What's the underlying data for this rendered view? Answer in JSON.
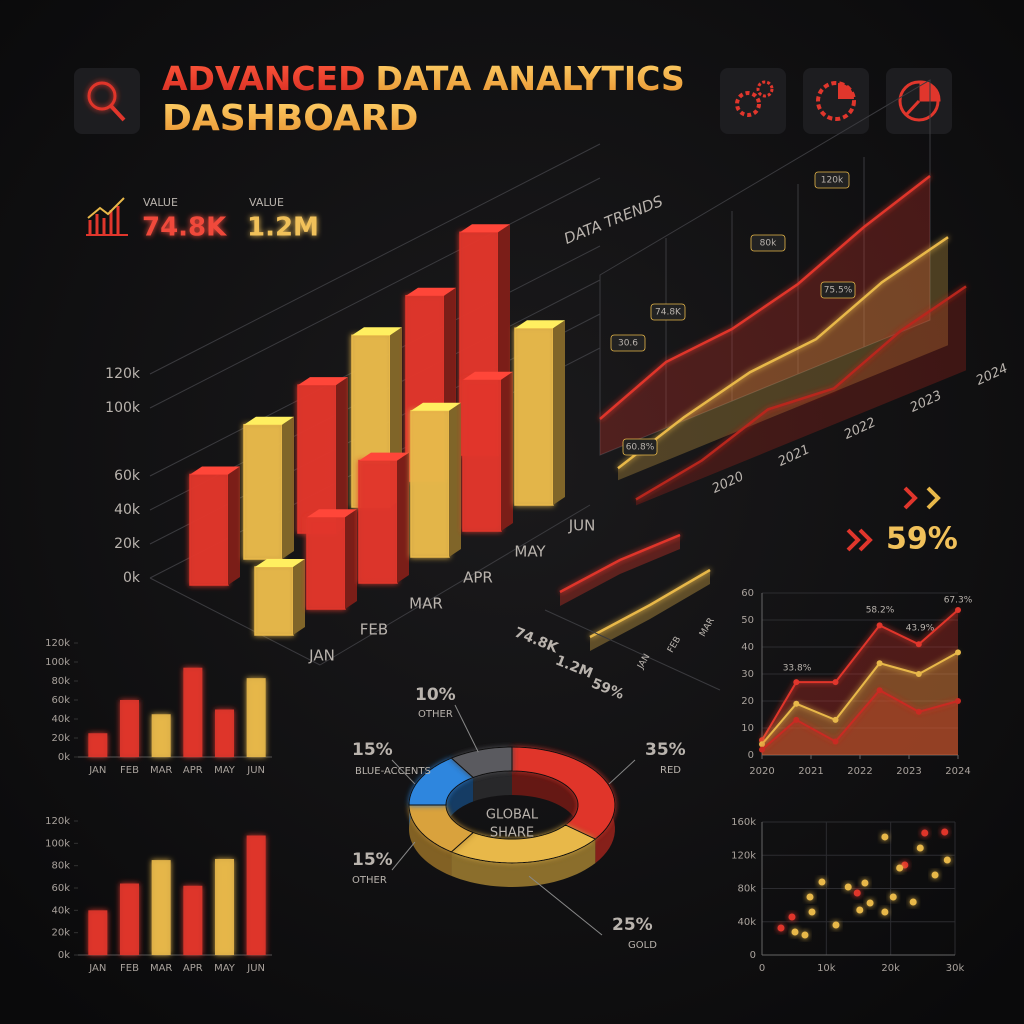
{
  "header": {
    "title": [
      "ADVANCED",
      "DATA ANALYTICS",
      "DASHBOARD"
    ]
  },
  "kpis": [
    {
      "label": "VALUE",
      "value": "74.8K"
    },
    {
      "label": "VALUE",
      "value": "1.2M"
    },
    {
      "value": "59%"
    }
  ],
  "chart_data": [
    {
      "type": "bar3d",
      "categories": [
        "JAN",
        "FEB",
        "MAR",
        "APR",
        "MAY",
        "JUN"
      ],
      "series": [
        {
          "colors": [
            "#e0362c",
            "#e8b84a",
            "#e0362c",
            "#e8b84a",
            "#e0362c",
            "#e0362c"
          ],
          "values": [
            65000,
            79000,
            87000,
            101000,
            109000,
            131000
          ]
        },
        {
          "colors": [
            "#e8b84a",
            "#e0362c",
            "#e0362c",
            "#e8b84a",
            "#e0362c",
            "#e8b84a"
          ],
          "values": [
            40000,
            54000,
            72000,
            86000,
            89000,
            104000
          ]
        }
      ],
      "ylim": [
        0,
        120000
      ],
      "yticks": [
        {
          "value": 0,
          "label": "0k"
        },
        {
          "value": 20000,
          "label": "20k"
        },
        {
          "value": 40000,
          "label": "40k"
        },
        {
          "value": 60000,
          "label": "60k"
        },
        {
          "value": 100000,
          "label": "100k"
        },
        {
          "value": 120000,
          "label": "120k"
        }
      ]
    },
    {
      "type": "line3d",
      "title": "DATA TRENDS",
      "x": [
        2019,
        2020,
        2021,
        2022,
        2023,
        2024
      ],
      "xlim": [
        2019,
        2024
      ],
      "xticks": [
        2020,
        2021,
        2022,
        2023,
        2024
      ],
      "series": [
        {
          "color": "#e0362c",
          "values": [
            30000,
            55000,
            60000,
            75000,
            100000,
            120000
          ]
        },
        {
          "color": "#e8b84a",
          "values": [
            10000,
            30000,
            45000,
            50000,
            75000,
            90000
          ]
        },
        {
          "color": "#b8261e",
          "values": [
            5000,
            15000,
            35000,
            30000,
            55000,
            70000
          ]
        }
      ],
      "annotations": [
        "120k",
        "80k",
        "75.5%",
        "74.8K",
        "30.6",
        "60.8%"
      ]
    },
    {
      "type": "ribbon",
      "categories": [
        "JAN",
        "FEB",
        "MAR"
      ],
      "series": [
        {
          "color": "#e0362c",
          "values": [
            8,
            20,
            25
          ]
        },
        {
          "color": "#e8b84a",
          "values": [
            8,
            20,
            35
          ]
        }
      ],
      "labels": [
        "74.8K",
        "1.2M",
        "59%"
      ]
    },
    {
      "type": "bar",
      "categories": [
        "JAN",
        "FEB",
        "MAR",
        "APR",
        "MAY",
        "JUN"
      ],
      "values": [
        25000,
        60000,
        45000,
        94000,
        50000,
        83000
      ],
      "colors": [
        "#e0362c",
        "#e0362c",
        "#e8b84a",
        "#e0362c",
        "#e0362c",
        "#e8b84a"
      ],
      "ylim": [
        0,
        120000
      ],
      "yticks": [
        {
          "value": 0,
          "label": "0k"
        },
        {
          "value": 20000,
          "label": "20k"
        },
        {
          "value": 40000,
          "label": "40k"
        },
        {
          "value": 60000,
          "label": "60k"
        },
        {
          "value": 80000,
          "label": "80k"
        },
        {
          "value": 100000,
          "label": "100k"
        },
        {
          "value": 120000,
          "label": "120k"
        }
      ]
    },
    {
      "type": "bar",
      "categories": [
        "JAN",
        "FEB",
        "MAR",
        "APR",
        "MAY",
        "JUN"
      ],
      "values": [
        40000,
        64000,
        85000,
        62000,
        86000,
        107000
      ],
      "colors": [
        "#e0362c",
        "#e0362c",
        "#e8b84a",
        "#e0362c",
        "#e8b84a",
        "#e0362c"
      ],
      "ylim": [
        0,
        120000
      ],
      "yticks": [
        {
          "value": 0,
          "label": "0k"
        },
        {
          "value": 20000,
          "label": "20k"
        },
        {
          "value": 40000,
          "label": "40k"
        },
        {
          "value": 60000,
          "label": "60k"
        },
        {
          "value": 80000,
          "label": "80k"
        },
        {
          "value": 100000,
          "label": "100k"
        },
        {
          "value": 120000,
          "label": "120k"
        }
      ]
    },
    {
      "type": "donut",
      "center_label": [
        "GLOBAL",
        "SHARE"
      ],
      "categories": [
        "RED",
        "GOLD",
        "OTHER",
        "BLUE-ACCENTS",
        "OTHER"
      ],
      "values": [
        35,
        25,
        15,
        15,
        10
      ],
      "value_labels": [
        "35%",
        "25%",
        "15%",
        "15%",
        "10%"
      ],
      "colors": [
        "#e0362c",
        "#e8b84a",
        "#d9a23c",
        "#2e86de",
        "#5a5a5e"
      ]
    },
    {
      "type": "line",
      "x": [
        2020,
        2020.7,
        2021.5,
        2022.4,
        2023.2,
        2024
      ],
      "xlim": [
        2020,
        2024
      ],
      "xticks": [
        2020,
        2021,
        2022,
        2023,
        2024
      ],
      "ylim": [
        0,
        60
      ],
      "yticks": [
        0,
        10,
        20,
        30,
        40,
        50,
        60
      ],
      "series": [
        {
          "color": "#e0362c",
          "values": [
            5.5,
            27,
            27,
            48,
            41,
            53.7
          ]
        },
        {
          "color": "#e8b84a",
          "values": [
            4,
            19,
            13,
            34,
            30,
            38
          ]
        },
        {
          "color": "#c92a22",
          "values": [
            2,
            13,
            5,
            24,
            16,
            20
          ]
        }
      ],
      "annotations": [
        "33.8%",
        "58.2%",
        "43.9%",
        "67.3%"
      ]
    },
    {
      "type": "scatter",
      "xlim": [
        0,
        30000
      ],
      "xticks": [
        0,
        {
          "value": 10000,
          "label": "10k"
        },
        {
          "value": 20000,
          "label": "20k"
        },
        {
          "value": 30000,
          "label": "30k"
        }
      ],
      "ylim": [
        0,
        160000
      ],
      "yticks": [
        0,
        {
          "value": 40000,
          "label": "40k"
        },
        {
          "value": 80000,
          "label": "80k"
        },
        {
          "value": 120000,
          "label": "120k"
        },
        {
          "value": 160000,
          "label": "160k"
        }
      ],
      "series": [
        {
          "color": "#e0362c",
          "x": [
            2950,
            4660,
            14800,
            22200,
            25300,
            28400
          ],
          "values": [
            32500,
            45700,
            74600,
            108300,
            146800,
            148000
          ]
        },
        {
          "color": "#e8b84a",
          "x": [
            5130,
            6680,
            7460,
            9320,
            7770,
            11500,
            13400,
            15200,
            16000,
            16800,
            19100,
            19100,
            20400,
            21400,
            23500,
            24600,
            26900,
            28800
          ],
          "values": [
            27700,
            24100,
            69800,
            87800,
            51700,
            36100,
            81800,
            54100,
            86600,
            62600,
            142000,
            51700,
            69800,
            104700,
            63800,
            128700,
            96200,
            114300
          ]
        }
      ]
    }
  ]
}
